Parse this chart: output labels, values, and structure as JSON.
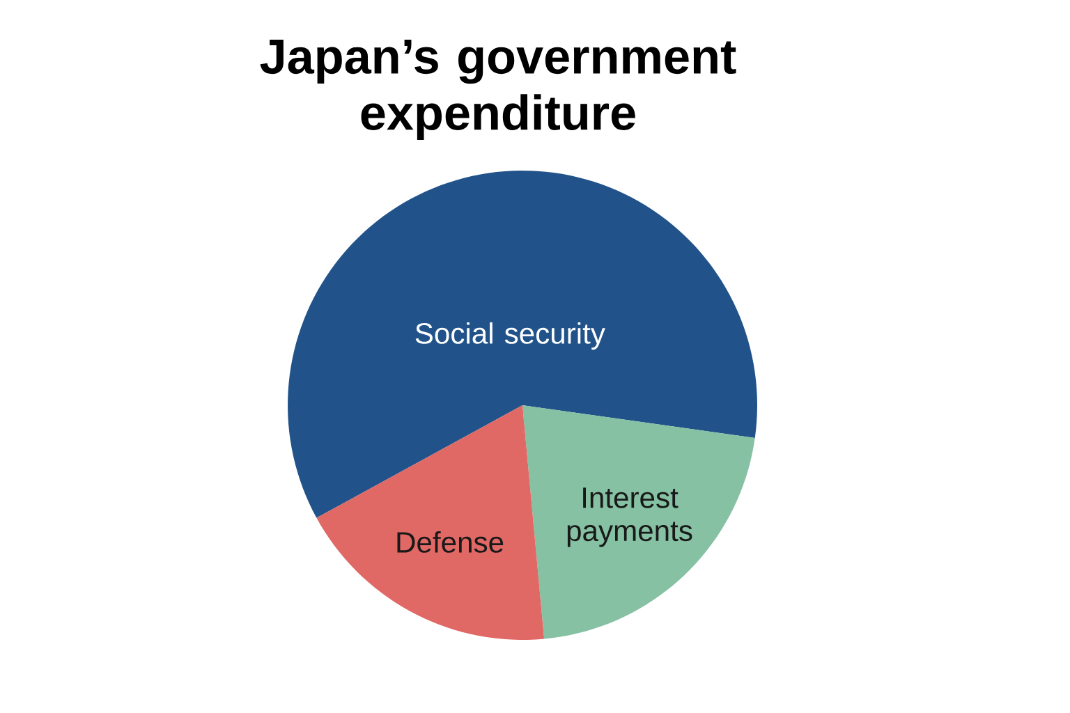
{
  "chart_data": {
    "type": "pie",
    "title": "Japan’s government expenditure",
    "categories": [
      "Social security",
      "Interest payments",
      "Defense"
    ],
    "values": [
      60.2,
      21.3,
      18.5
    ],
    "colors": [
      "#21538a",
      "#85c1a2",
      "#e06865"
    ]
  }
}
